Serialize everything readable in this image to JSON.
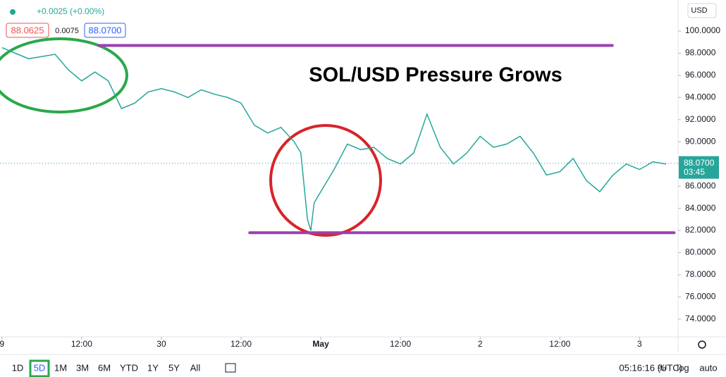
{
  "chart_data": {
    "type": "line",
    "title": "SOL/USD Pressure Grows",
    "change": "+0.0025 (+0.00%)",
    "bid": "88.0625",
    "spread": "0.0075",
    "ask": "88.0700",
    "currency": "USD",
    "last_price": 88.07,
    "last_price_label": "88.0700",
    "countdown": "03:45",
    "x": [
      0,
      2,
      4,
      6,
      8,
      10,
      12,
      14,
      16,
      18,
      20,
      22,
      24,
      26,
      28,
      30,
      32,
      34,
      36,
      38,
      40,
      42,
      44,
      45,
      46,
      46.5,
      47,
      48,
      50,
      52,
      54,
      56,
      58,
      60,
      62,
      64,
      66,
      68,
      70,
      72,
      74,
      76,
      78,
      80,
      82,
      84,
      86,
      88,
      90,
      92,
      94,
      96,
      98,
      100
    ],
    "series": [
      {
        "color": "#26a69a",
        "values": [
          98.5,
          98.0,
          97.5,
          97.7,
          97.9,
          96.5,
          95.5,
          96.3,
          95.5,
          93.0,
          93.5,
          94.5,
          94.8,
          94.5,
          94.0,
          94.7,
          94.3,
          94.0,
          93.5,
          91.5,
          90.8,
          91.3,
          90.0,
          89.0,
          83.0,
          82.0,
          84.5,
          85.5,
          87.5,
          89.8,
          89.3,
          89.5,
          88.5,
          88.0,
          89.0,
          92.5,
          89.5,
          88.0,
          89.0,
          90.5,
          89.5,
          89.8,
          90.5,
          89.0,
          87.0,
          87.3,
          88.5,
          86.5,
          85.5,
          87.0,
          88.0,
          87.5,
          88.2,
          88.0
        ]
      }
    ],
    "levels": [
      {
        "value": 98.7,
        "x": [
          14.55,
          91.9
        ],
        "color": "#9c3fb0"
      },
      {
        "value": 81.8,
        "x": [
          37.3,
          101.2
        ],
        "color": "#9c3fb0"
      }
    ],
    "xlim": [
      -0.3,
      101.8
    ],
    "ylim": [
      72.4,
      102.8
    ],
    "xticks": [
      {
        "value": 0,
        "label": "9"
      },
      {
        "value": 12,
        "label": "12:00"
      },
      {
        "value": 24,
        "label": "30"
      },
      {
        "value": 36,
        "label": "12:00"
      },
      {
        "value": 48,
        "label": "May"
      },
      {
        "value": 60,
        "label": "12:00"
      },
      {
        "value": 72,
        "label": "2"
      },
      {
        "value": 84,
        "label": "12:00"
      },
      {
        "value": 96,
        "label": "3"
      }
    ],
    "yticks": [
      {
        "value": 74,
        "label": "74.0000"
      },
      {
        "value": 76,
        "label": "76.0000"
      },
      {
        "value": 78,
        "label": "78.0000"
      },
      {
        "value": 80,
        "label": "80.0000"
      },
      {
        "value": 82,
        "label": "82.0000"
      },
      {
        "value": 84,
        "label": "84.0000"
      },
      {
        "value": 86,
        "label": "86.0000"
      },
      {
        "value": 88,
        "label": "88.0000"
      },
      {
        "value": 90,
        "label": "90.0000"
      },
      {
        "value": 92,
        "label": "92.0000"
      },
      {
        "value": 94,
        "label": "94.0000"
      },
      {
        "value": 96,
        "label": "96.0000"
      },
      {
        "value": 98,
        "label": "98.0000"
      },
      {
        "value": 100,
        "label": "100.0000"
      }
    ],
    "intervals": [
      "1D",
      "5D",
      "1M",
      "3M",
      "6M",
      "YTD",
      "1Y",
      "5Y",
      "All"
    ],
    "selected_interval": 1,
    "clock": "05:16:16 (UTC)",
    "scale_options": [
      "%",
      "log",
      "auto"
    ]
  }
}
